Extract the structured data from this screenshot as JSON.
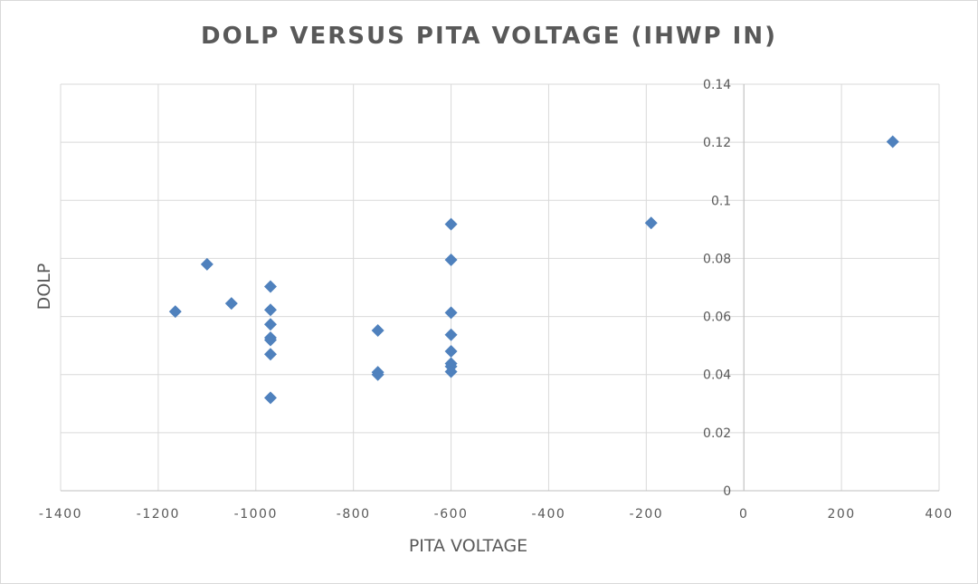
{
  "chart_data": {
    "type": "scatter",
    "title": "DOLP VERSUS PITA VOLTAGE  (IHWP IN)",
    "xlabel": "PITA VOLTAGE",
    "ylabel": "DOLP",
    "xlim": [
      -1400,
      400
    ],
    "ylim": [
      0,
      0.14
    ],
    "x_ticks": [
      "-1400",
      "-1200",
      "-1000",
      "-800",
      "-600",
      "-400",
      "-200",
      "0",
      "200",
      "400"
    ],
    "x_tick_values": [
      -1400,
      -1200,
      -1000,
      -800,
      -600,
      -400,
      -200,
      0,
      200,
      400
    ],
    "y_ticks": [
      "0",
      "0.02",
      "0.04",
      "0.06",
      "0.08",
      "0.1",
      "0.12",
      "0.14"
    ],
    "y_tick_values": [
      0,
      0.02,
      0.04,
      0.06,
      0.08,
      0.1,
      0.12,
      0.14
    ],
    "grid": true,
    "y_axis_position": "x=0",
    "marker": "diamond",
    "series": [
      {
        "color": "#4f81bd",
        "points": [
          {
            "x": -1165,
            "y": 0.0617
          },
          {
            "x": -1100,
            "y": 0.078
          },
          {
            "x": -1050,
            "y": 0.0645
          },
          {
            "x": -970,
            "y": 0.0703
          },
          {
            "x": -970,
            "y": 0.0623
          },
          {
            "x": -970,
            "y": 0.0573
          },
          {
            "x": -970,
            "y": 0.0527
          },
          {
            "x": -970,
            "y": 0.0519
          },
          {
            "x": -970,
            "y": 0.047
          },
          {
            "x": -970,
            "y": 0.032
          },
          {
            "x": -750,
            "y": 0.0552
          },
          {
            "x": -750,
            "y": 0.0408
          },
          {
            "x": -750,
            "y": 0.04
          },
          {
            "x": -600,
            "y": 0.0918
          },
          {
            "x": -600,
            "y": 0.0795
          },
          {
            "x": -600,
            "y": 0.0613
          },
          {
            "x": -600,
            "y": 0.0537
          },
          {
            "x": -600,
            "y": 0.048
          },
          {
            "x": -600,
            "y": 0.0438
          },
          {
            "x": -600,
            "y": 0.0428
          },
          {
            "x": -600,
            "y": 0.041
          },
          {
            "x": -190,
            "y": 0.0922
          },
          {
            "x": 305,
            "y": 0.1202
          }
        ]
      }
    ]
  }
}
